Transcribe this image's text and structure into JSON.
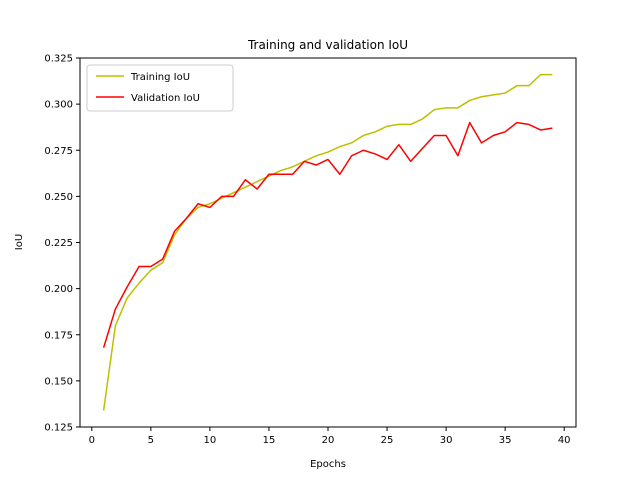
{
  "chart_data": {
    "type": "line",
    "title": "Training and validation IoU",
    "xlabel": "Epochs",
    "ylabel": "IoU",
    "xlim": [
      -1,
      41
    ],
    "ylim": [
      0.125,
      0.325
    ],
    "xticks": [
      0,
      5,
      10,
      15,
      20,
      25,
      30,
      35,
      40
    ],
    "yticks": [
      0.125,
      0.15,
      0.175,
      0.2,
      0.225,
      0.25,
      0.275,
      0.3,
      0.325
    ],
    "ytick_labels": [
      "0.125",
      "0.150",
      "0.175",
      "0.200",
      "0.225",
      "0.250",
      "0.275",
      "0.300",
      "0.325"
    ],
    "grid": false,
    "legend_position": "upper-left",
    "x": [
      1,
      2,
      3,
      4,
      5,
      6,
      7,
      8,
      9,
      10,
      11,
      12,
      13,
      14,
      15,
      16,
      17,
      18,
      19,
      20,
      21,
      22,
      23,
      24,
      25,
      26,
      27,
      28,
      29,
      30,
      31,
      32,
      33,
      34,
      35,
      36,
      37,
      38,
      39
    ],
    "series": [
      {
        "name": "Training IoU",
        "color": "#bfbf00",
        "values": [
          0.134,
          0.18,
          0.195,
          0.203,
          0.21,
          0.214,
          0.229,
          0.238,
          0.244,
          0.246,
          0.249,
          0.252,
          0.255,
          0.258,
          0.261,
          0.264,
          0.266,
          0.269,
          0.272,
          0.274,
          0.277,
          0.279,
          0.283,
          0.285,
          0.288,
          0.289,
          0.289,
          0.292,
          0.297,
          0.298,
          0.298,
          0.302,
          0.304,
          0.305,
          0.306,
          0.31,
          0.31,
          0.316,
          0.316
        ]
      },
      {
        "name": "Validation IoU",
        "color": "#ff0000",
        "values": [
          0.168,
          0.189,
          0.201,
          0.212,
          0.212,
          0.216,
          0.231,
          0.238,
          0.246,
          0.244,
          0.25,
          0.25,
          0.259,
          0.254,
          0.262,
          0.262,
          0.262,
          0.269,
          0.267,
          0.27,
          0.262,
          0.272,
          0.275,
          0.273,
          0.27,
          0.278,
          0.269,
          0.276,
          0.283,
          0.283,
          0.272,
          0.29,
          0.279,
          0.283,
          0.285,
          0.29,
          0.289,
          0.286,
          0.287
        ]
      }
    ]
  }
}
